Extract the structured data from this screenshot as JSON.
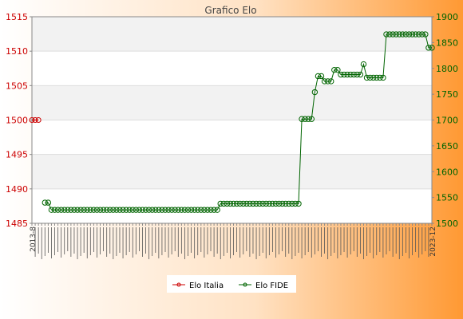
{
  "chart_data": {
    "type": "line",
    "title": "Grafico Elo",
    "xlabel": "",
    "ylabel": "",
    "left_axis": {
      "min": 1485,
      "max": 1515,
      "ticks": [
        1485,
        1490,
        1495,
        1500,
        1505,
        1510,
        1515
      ]
    },
    "right_axis": {
      "min": 1500,
      "max": 1900,
      "ticks": [
        1500,
        1550,
        1600,
        1650,
        1700,
        1750,
        1800,
        1850,
        1900
      ]
    },
    "x_first_label": "2013-8",
    "x_last_label": "2023-12",
    "x_count": 124,
    "grid": true,
    "legend_position": "bottom",
    "colors": {
      "italia": "#cc0000",
      "fide": "#006400",
      "bg_left": "#ffffff",
      "bg_right": "#ff9933"
    },
    "series": [
      {
        "name": "Elo Italia",
        "axis": "left",
        "x": [
          0,
          1,
          2
        ],
        "values": [
          1500,
          1500,
          1500
        ]
      },
      {
        "name": "Elo FIDE",
        "axis": "right",
        "segments": [
          {
            "from": 4,
            "to": 5,
            "value": 1540
          },
          {
            "from": 6,
            "to": 57,
            "value": 1526
          },
          {
            "from": 58,
            "to": 82,
            "value": 1538
          },
          {
            "from": 83,
            "to": 86,
            "value": 1702
          },
          {
            "from": 87,
            "to": 87,
            "value": 1754
          },
          {
            "from": 88,
            "to": 89,
            "value": 1785
          },
          {
            "from": 90,
            "to": 92,
            "value": 1775
          },
          {
            "from": 93,
            "to": 94,
            "value": 1797
          },
          {
            "from": 95,
            "to": 101,
            "value": 1788
          },
          {
            "from": 102,
            "to": 102,
            "value": 1808
          },
          {
            "from": 103,
            "to": 108,
            "value": 1782
          },
          {
            "from": 109,
            "to": 121,
            "value": 1866
          },
          {
            "from": 122,
            "to": 123,
            "value": 1840
          }
        ]
      }
    ]
  }
}
